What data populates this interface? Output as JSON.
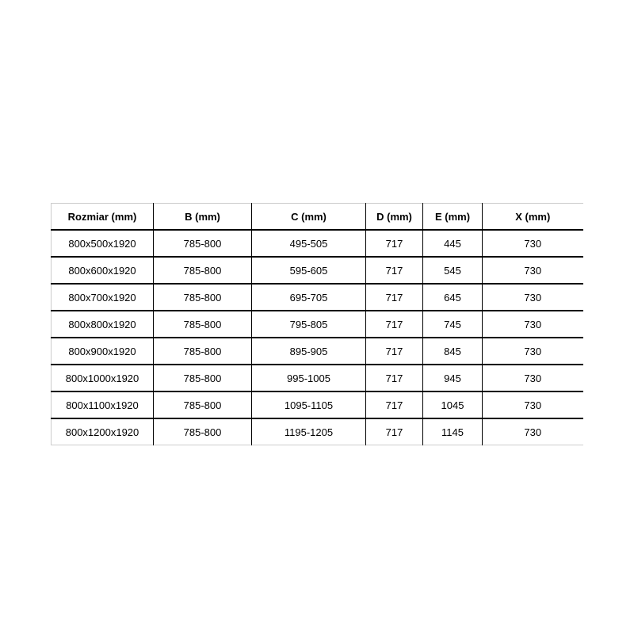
{
  "chart_data": {
    "type": "table",
    "columns": [
      "Rozmiar (mm)",
      "B (mm)",
      "C (mm)",
      "D (mm)",
      "E (mm)",
      "X (mm)"
    ],
    "rows": [
      [
        "800x500x1920",
        "785-800",
        "495-505",
        "717",
        "445",
        "730"
      ],
      [
        "800x600x1920",
        "785-800",
        "595-605",
        "717",
        "545",
        "730"
      ],
      [
        "800x700x1920",
        "785-800",
        "695-705",
        "717",
        "645",
        "730"
      ],
      [
        "800x800x1920",
        "785-800",
        "795-805",
        "717",
        "745",
        "730"
      ],
      [
        "800x900x1920",
        "785-800",
        "895-905",
        "717",
        "845",
        "730"
      ],
      [
        "800x1000x1920",
        "785-800",
        "995-1005",
        "717",
        "945",
        "730"
      ],
      [
        "800x1100x1920",
        "785-800",
        "1095-1105",
        "717",
        "1045",
        "730"
      ],
      [
        "800x1200x1920",
        "785-800",
        "1195-1205",
        "717",
        "1145",
        "730"
      ]
    ],
    "layout": {
      "grid": "on",
      "header_style": "bold",
      "cell_alignment": "center"
    }
  },
  "colors": {
    "background": "#ffffff",
    "text": "#000000",
    "inner_border": "#000000",
    "outer_border": "#cccccc"
  }
}
